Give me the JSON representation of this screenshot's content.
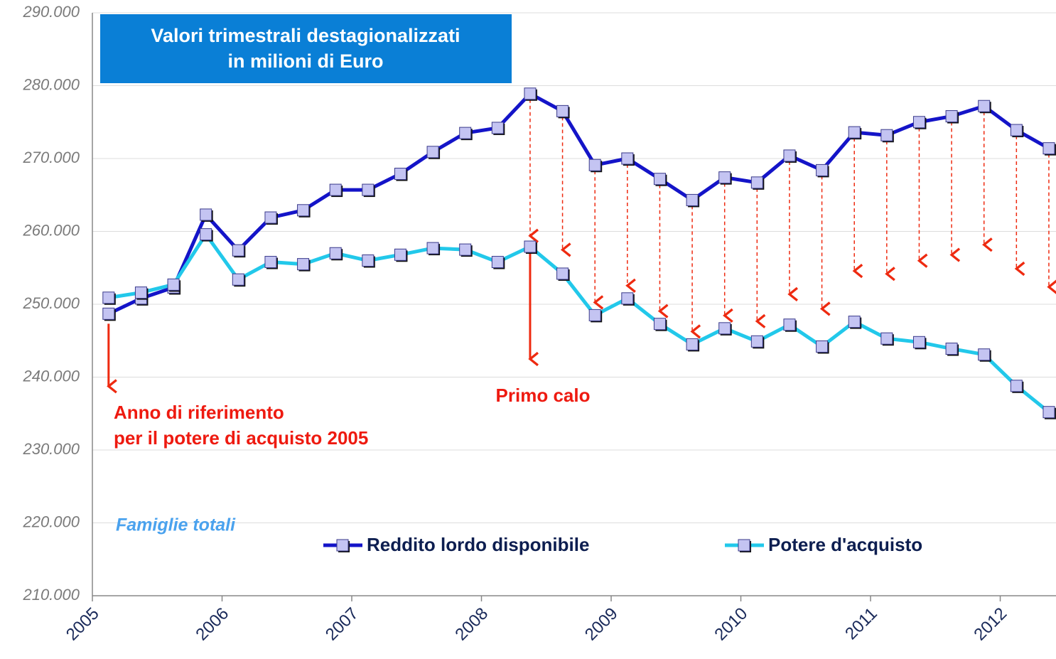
{
  "chart_data": {
    "type": "line",
    "title": [
      "Valori trimestrali destagionalizzati",
      "in milioni di Euro"
    ],
    "annotations": [
      {
        "lines": [
          "Anno di riferimento",
          "per il potere di acquisto 2005"
        ]
      },
      {
        "lines": [
          "Primo calo"
        ]
      }
    ],
    "subtitle": "Famiglie totali",
    "x": [
      2005.125,
      2005.375,
      2005.625,
      2005.875,
      2006.125,
      2006.375,
      2006.625,
      2006.875,
      2007.125,
      2007.375,
      2007.625,
      2007.875,
      2008.125,
      2008.375,
      2008.625,
      2008.875,
      2009.125,
      2009.375,
      2009.625,
      2009.875,
      2010.125,
      2010.375,
      2010.625,
      2010.875,
      2011.125,
      2011.375,
      2011.625,
      2011.875,
      2012.125,
      2012.375
    ],
    "series": [
      {
        "name": "Reddito lordo disponibile",
        "color": "#1414c8",
        "values": [
          248700,
          250800,
          252300,
          262300,
          257400,
          261900,
          262900,
          265700,
          265700,
          267900,
          270900,
          273500,
          274200,
          278900,
          276500,
          269100,
          270000,
          267200,
          264300,
          267400,
          266700,
          270400,
          268400,
          273600,
          273200,
          275000,
          275800,
          277200,
          273900,
          271400
        ]
      },
      {
        "name": "Potere d'acquisto",
        "color": "#22c8ea",
        "values": [
          250900,
          251600,
          252700,
          259600,
          253400,
          255800,
          255500,
          257000,
          256000,
          256800,
          257700,
          257500,
          255800,
          257900,
          254200,
          248500,
          250800,
          247300,
          244500,
          246700,
          244900,
          247200,
          244200,
          247600,
          245300,
          244800,
          243900,
          243100,
          238800,
          235200
        ]
      }
    ],
    "xlim": [
      2005,
      2012.43
    ],
    "xticks": [
      2005,
      2006,
      2007,
      2008,
      2009,
      2010,
      2011,
      2012
    ],
    "ylim": [
      210000,
      290000
    ],
    "yticks": [
      {
        "value": 210000,
        "label": "210.000"
      },
      {
        "value": 220000,
        "label": "220.000"
      },
      {
        "value": 230000,
        "label": "230.000"
      },
      {
        "value": 240000,
        "label": "240.000"
      },
      {
        "value": 250000,
        "label": "250.000"
      },
      {
        "value": 260000,
        "label": "260.000"
      },
      {
        "value": 270000,
        "label": "270.000"
      },
      {
        "value": 280000,
        "label": "280.000"
      },
      {
        "value": 290000,
        "label": "290.000"
      }
    ],
    "grid": true,
    "legend": "bottom"
  }
}
